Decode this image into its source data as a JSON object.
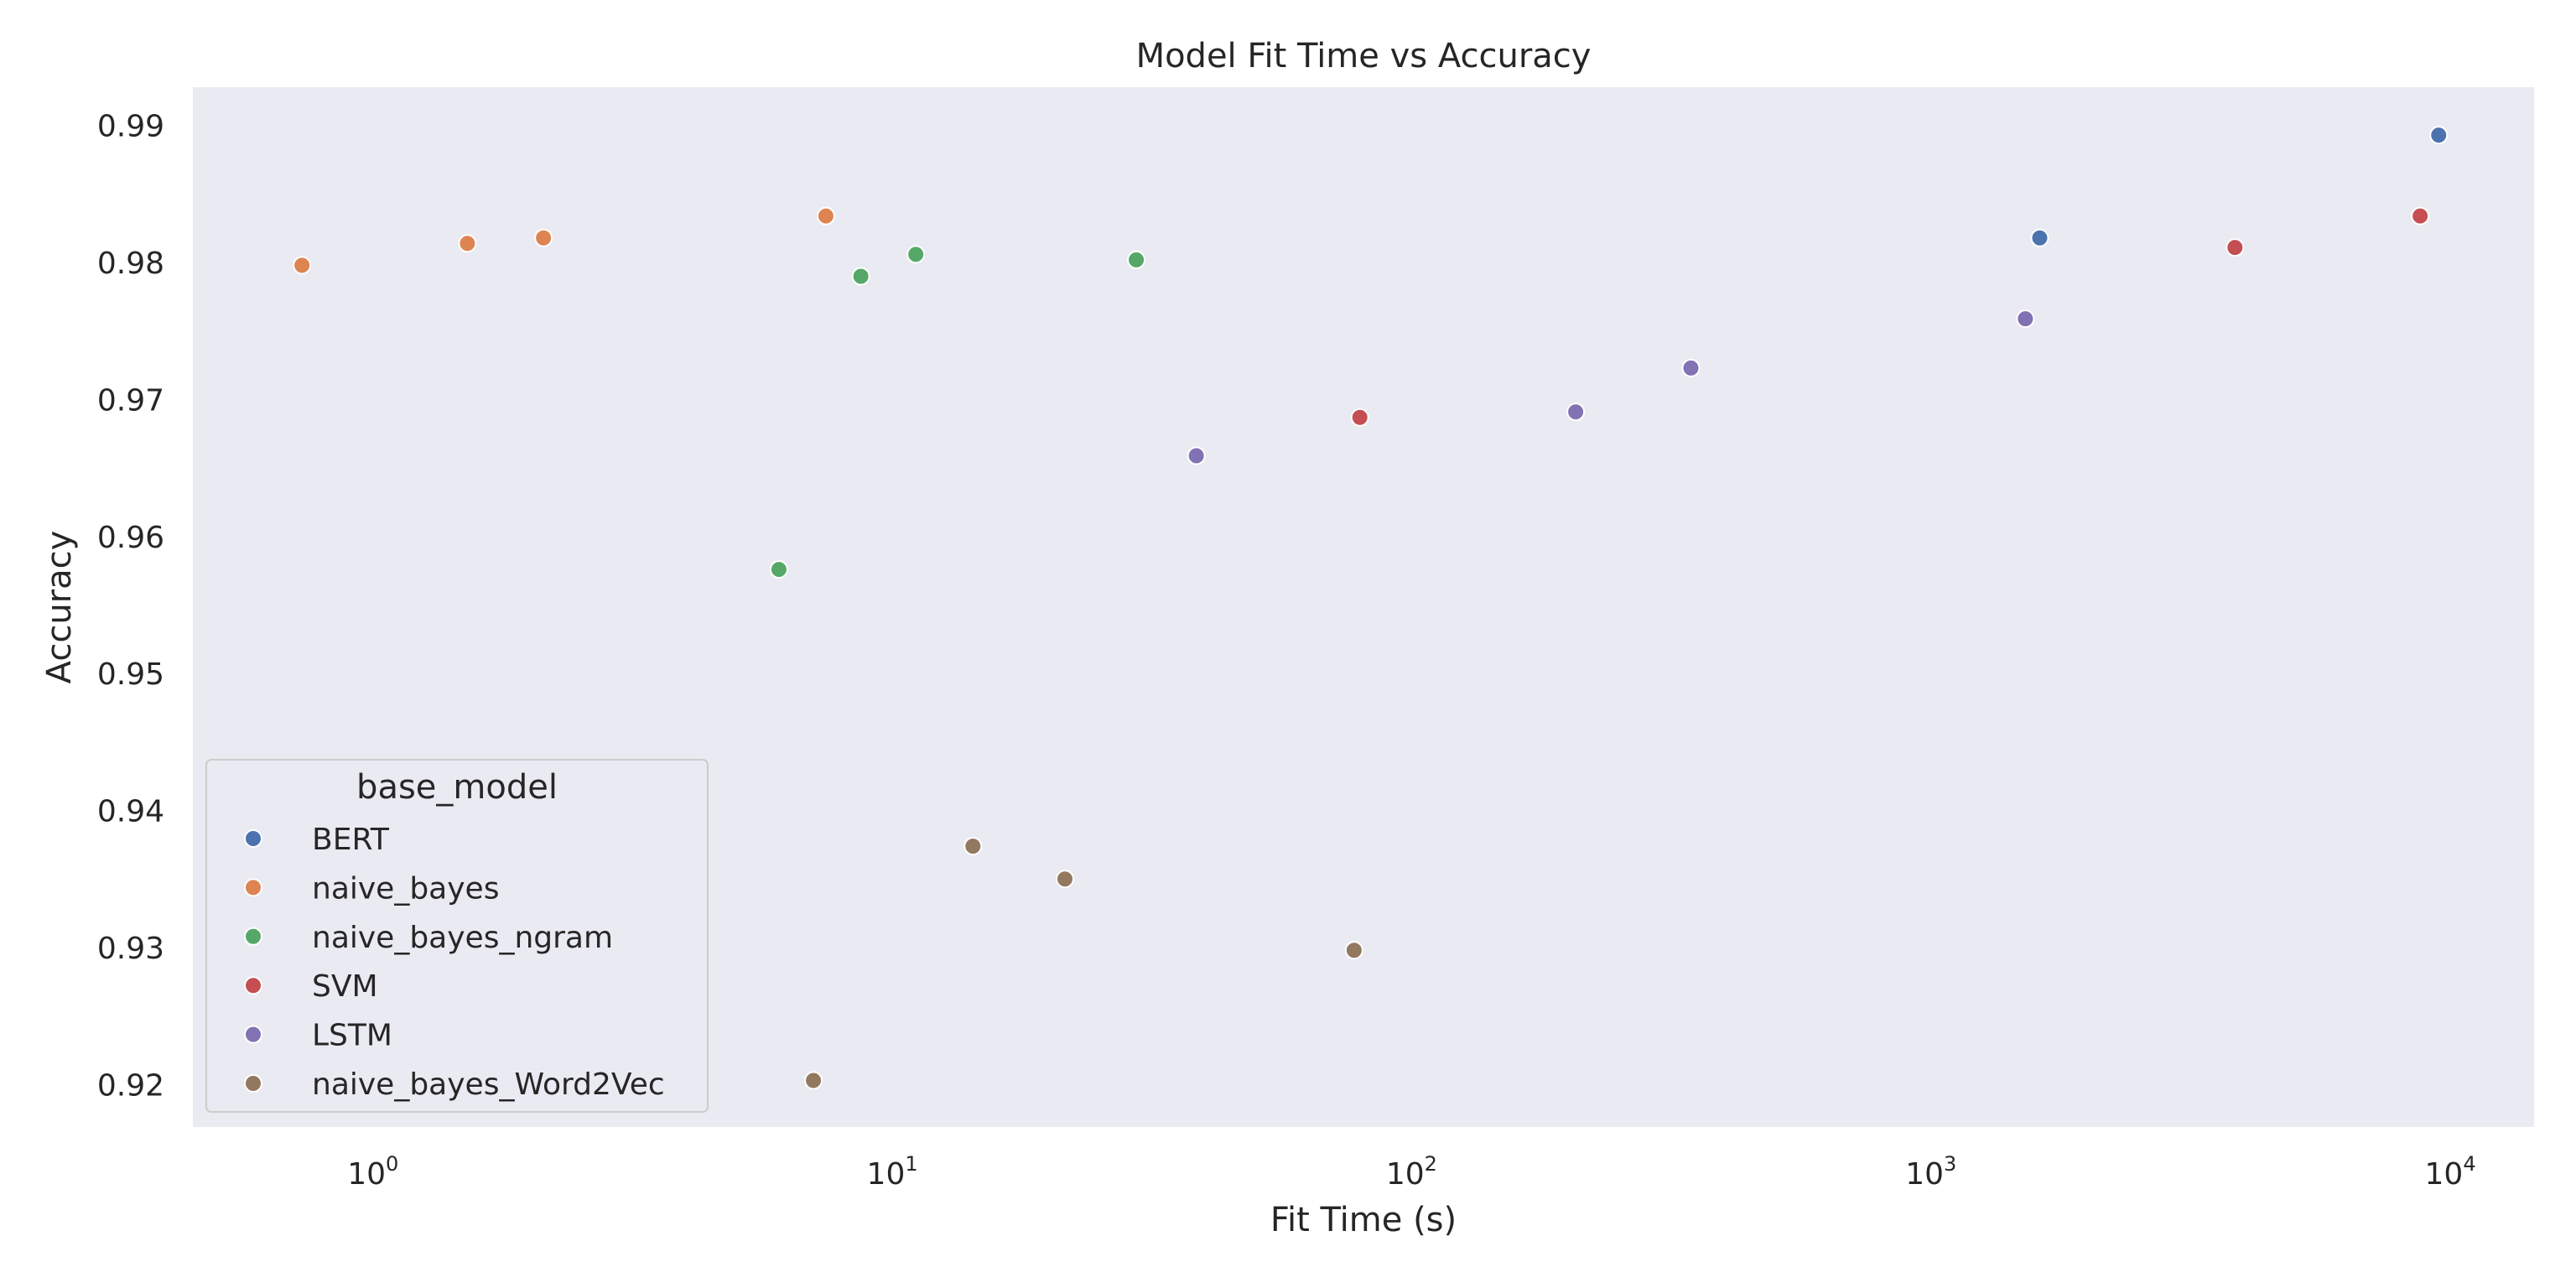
{
  "chart_data": {
    "type": "scatter",
    "title": "Model Fit Time vs Accuracy",
    "xlabel": "Fit Time (s)",
    "ylabel": "Accuracy",
    "x_scale": "log",
    "xlim": [
      0.45,
      14500
    ],
    "ylim": [
      0.9169,
      0.9928
    ],
    "x_ticks": [
      {
        "value": 1,
        "base": "10",
        "exp": "0"
      },
      {
        "value": 10,
        "base": "10",
        "exp": "1"
      },
      {
        "value": 100,
        "base": "10",
        "exp": "2"
      },
      {
        "value": 1000,
        "base": "10",
        "exp": "3"
      },
      {
        "value": 10000,
        "base": "10",
        "exp": "4"
      }
    ],
    "y_ticks": [
      0.92,
      0.93,
      0.94,
      0.95,
      0.96,
      0.97,
      0.98,
      0.99
    ],
    "y_tick_labels": [
      "0.92",
      "0.93",
      "0.94",
      "0.95",
      "0.96",
      "0.97",
      "0.98",
      "0.99"
    ],
    "grid": false,
    "background": "#eaeaf2",
    "legend": {
      "title": "base_model",
      "placement": "lower-left"
    },
    "series": [
      {
        "name": "BERT",
        "color": "#4c72b0",
        "points": [
          [
            1620,
            0.9818
          ],
          [
            9500,
            0.9893
          ]
        ]
      },
      {
        "name": "naive_bayes",
        "color": "#dd8452",
        "points": [
          [
            0.73,
            0.9798
          ],
          [
            1.52,
            0.9814
          ],
          [
            2.13,
            0.9818
          ],
          [
            7.45,
            0.9834
          ]
        ]
      },
      {
        "name": "naive_bayes_ngram",
        "color": "#55a868",
        "points": [
          [
            6.05,
            0.9576
          ],
          [
            8.7,
            0.979
          ],
          [
            11.1,
            0.9806
          ],
          [
            29.5,
            0.9802
          ]
        ]
      },
      {
        "name": "SVM",
        "color": "#c44e52",
        "points": [
          [
            79.5,
            0.9687
          ],
          [
            3850,
            0.9811
          ],
          [
            8750,
            0.9834
          ]
        ]
      },
      {
        "name": "LSTM",
        "color": "#8172b3",
        "points": [
          [
            38.5,
            0.9659
          ],
          [
            207,
            0.9691
          ],
          [
            345,
            0.9723
          ],
          [
            1520,
            0.9759
          ]
        ]
      },
      {
        "name": "naive_bayes_Word2Vec",
        "color": "#937860",
        "points": [
          [
            7.05,
            0.9203
          ],
          [
            14.3,
            0.9374
          ],
          [
            21.5,
            0.935
          ],
          [
            77.5,
            0.9298
          ]
        ]
      }
    ]
  }
}
